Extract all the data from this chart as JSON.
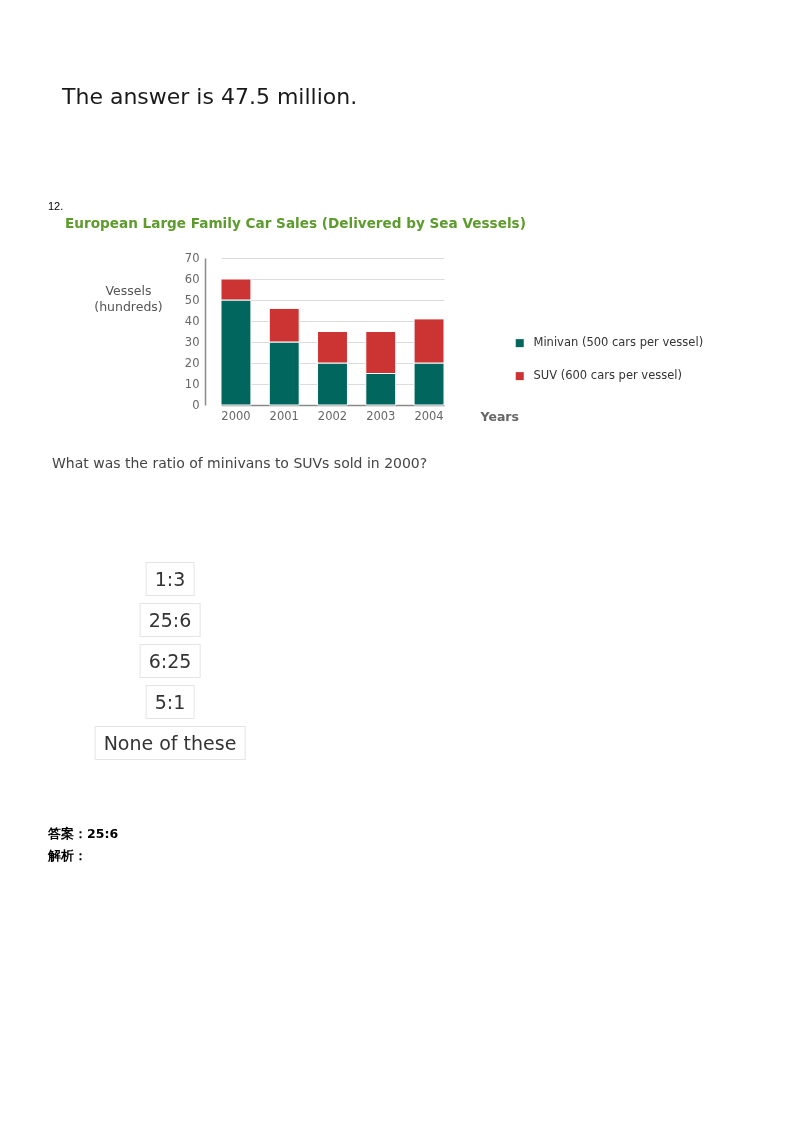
{
  "chart_data": {
    "type": "bar",
    "title": "European Large Family Car Sales (Delivered by Sea Vessels)",
    "ylabel": "Vessels\n(hundreds)",
    "xlabel": "Years",
    "categories": [
      "2000",
      "2001",
      "2002",
      "2003",
      "2004"
    ],
    "series": [
      {
        "name": "Minivan (500 cars per vessel)",
        "color": "#00665e",
        "values": [
          50,
          30,
          20,
          15,
          20
        ]
      },
      {
        "name": "SUV (600 cars per vessel)",
        "color": "#cc3333",
        "values": [
          10,
          16,
          15,
          20,
          21
        ]
      }
    ],
    "stacked": true,
    "ylim": [
      0,
      70
    ],
    "yticks": [
      0,
      10,
      20,
      30,
      40,
      50,
      60,
      70
    ],
    "grid": "y",
    "legend": "right",
    "annotations": [
      "The answer is 47.5 million.",
      "12.",
      "What was the ratio of minivans to SUVs sold in 2000?",
      "1:3",
      "25:6",
      "6:25",
      "5:1",
      "None of these",
      "答案：25:6",
      "解析："
    ]
  }
}
